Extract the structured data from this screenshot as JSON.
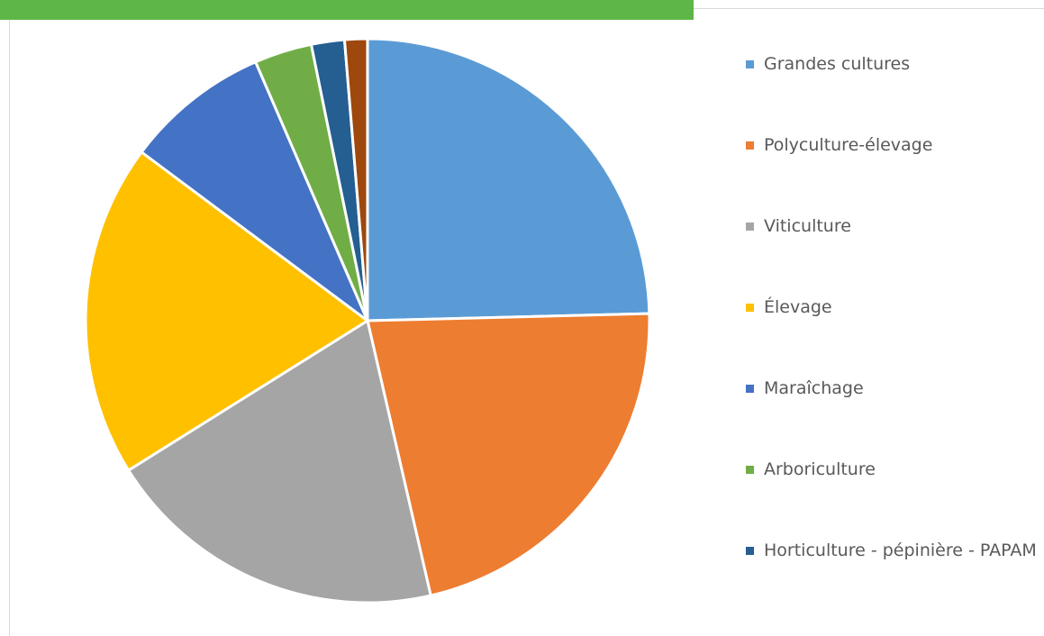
{
  "chart_data": {
    "type": "pie",
    "categories": [
      "Grandes cultures",
      "Polyculture-élevage",
      "Viticulture",
      "Élevage",
      "Maraîchage",
      "Arboriculture",
      "Horticulture - pépinière - PAPAM",
      null
    ],
    "values": [
      24.6,
      21.8,
      19.7,
      19.1,
      8.3,
      3.3,
      1.9,
      1.3
    ],
    "colors": [
      "#5b9bd5",
      "#ed7d31",
      "#a5a5a5",
      "#ffc000",
      "#4472c4",
      "#70ad47",
      "#255e91",
      "#9e480e"
    ]
  }
}
